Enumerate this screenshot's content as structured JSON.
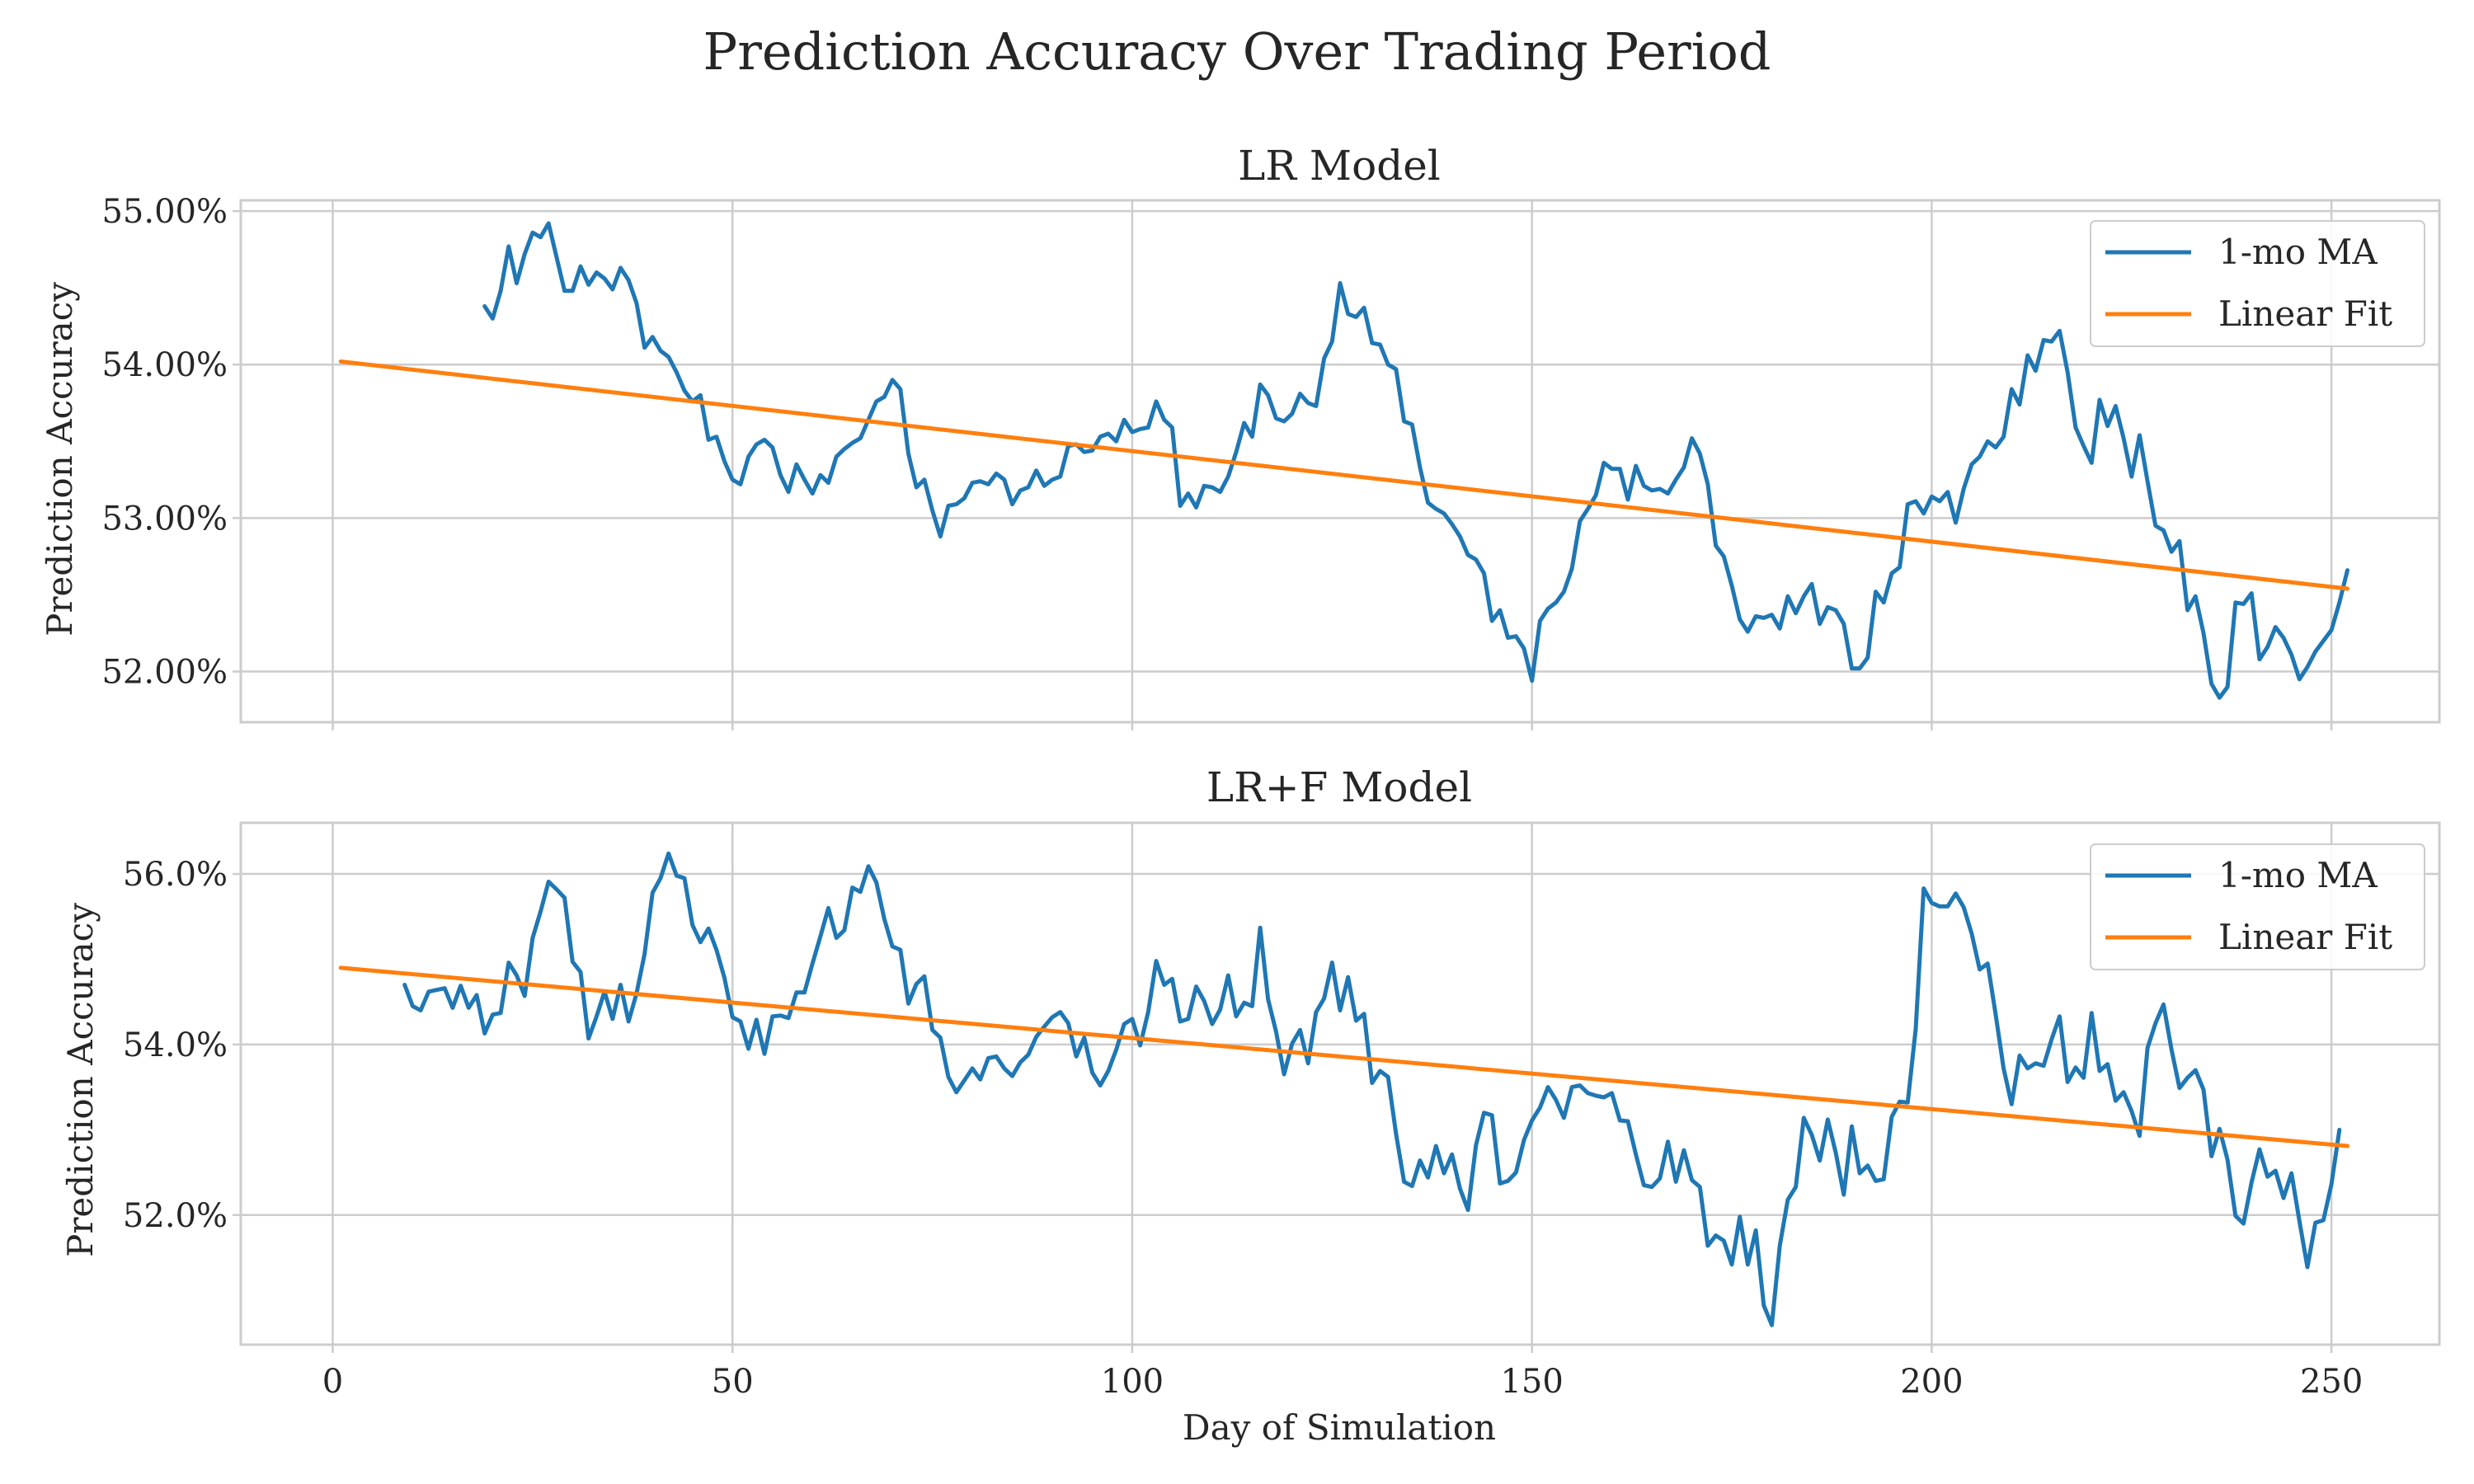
{
  "figure": {
    "title": "Prediction Accuracy Over Trading Period"
  },
  "colors": {
    "ma": "#1f77b4",
    "fit": "#ff7f0e",
    "grid": "#cccccc",
    "frame": "#cccccc",
    "text": "#262626"
  },
  "chart_data": [
    {
      "type": "line",
      "title": "LR Model",
      "xlabel": "",
      "ylabel": "Prediction Accuracy",
      "xlim": [
        -11.5,
        263.5
      ],
      "ylim": [
        51.67,
        55.07
      ],
      "xticks": [
        0,
        50,
        100,
        150,
        200,
        250
      ],
      "yticks": [
        52,
        53,
        54,
        55
      ],
      "ytick_labels": [
        "52.00%",
        "53.00%",
        "54.00%",
        "55.00%"
      ],
      "grid": true,
      "legend": {
        "position": "top-right",
        "entries": [
          "1-mo MA",
          "Linear Fit"
        ]
      },
      "series": [
        {
          "name": "1-mo MA",
          "x_start": 19,
          "y": [
            54.38,
            54.3,
            54.48,
            54.77,
            54.53,
            54.72,
            54.86,
            54.83,
            54.92,
            54.7,
            54.48,
            54.48,
            54.64,
            54.52,
            54.6,
            54.56,
            54.49,
            54.63,
            54.55,
            54.4,
            54.11,
            54.18,
            54.09,
            54.05,
            53.95,
            53.83,
            53.76,
            53.8,
            53.51,
            53.53,
            53.37,
            53.25,
            53.22,
            53.4,
            53.48,
            53.51,
            53.46,
            53.28,
            53.17,
            53.35,
            53.25,
            53.16,
            53.28,
            53.23,
            53.4,
            53.45,
            53.49,
            53.52,
            53.64,
            53.76,
            53.79,
            53.9,
            53.84,
            53.42,
            53.2,
            53.25,
            53.05,
            52.88,
            53.08,
            53.09,
            53.13,
            53.23,
            53.24,
            53.22,
            53.29,
            53.25,
            53.09,
            53.18,
            53.2,
            53.31,
            53.21,
            53.25,
            53.27,
            53.47,
            53.48,
            53.43,
            53.44,
            53.53,
            53.55,
            53.5,
            53.64,
            53.56,
            53.58,
            53.59,
            53.76,
            53.64,
            53.59,
            53.08,
            53.16,
            53.07,
            53.21,
            53.2,
            53.17,
            53.27,
            53.43,
            53.62,
            53.53,
            53.87,
            53.8,
            53.65,
            53.63,
            53.68,
            53.81,
            53.75,
            53.73,
            54.04,
            54.15,
            54.53,
            54.33,
            54.31,
            54.37,
            54.14,
            54.13,
            54.0,
            53.97,
            53.63,
            53.61,
            53.33,
            53.1,
            53.06,
            53.03,
            52.96,
            52.88,
            52.76,
            52.73,
            52.64,
            52.33,
            52.4,
            52.22,
            52.23,
            52.15,
            51.94,
            52.33,
            52.41,
            52.45,
            52.52,
            52.67,
            52.98,
            53.06,
            53.15,
            53.36,
            53.32,
            53.32,
            53.12,
            53.34,
            53.21,
            53.18,
            53.19,
            53.16,
            53.25,
            53.33,
            53.52,
            53.42,
            53.22,
            52.82,
            52.75,
            52.56,
            52.34,
            52.26,
            52.36,
            52.35,
            52.37,
            52.28,
            52.49,
            52.38,
            52.49,
            52.57,
            52.31,
            52.42,
            52.4,
            52.31,
            52.02,
            52.02,
            52.09,
            52.52,
            52.45,
            52.64,
            52.68,
            53.09,
            53.11,
            53.03,
            53.14,
            53.11,
            53.17,
            52.97,
            53.19,
            53.35,
            53.4,
            53.5,
            53.46,
            53.53,
            53.84,
            53.74,
            54.06,
            53.96,
            54.16,
            54.15,
            54.22,
            53.95,
            53.59,
            53.47,
            53.36,
            53.77,
            53.6,
            53.73,
            53.52,
            53.27,
            53.54,
            53.24,
            52.95,
            52.92,
            52.78,
            52.85,
            52.4,
            52.49,
            52.25,
            51.92,
            51.83,
            51.9,
            52.45,
            52.44,
            52.51,
            52.08,
            52.16,
            52.29,
            52.22,
            52.11,
            51.95,
            52.03,
            52.13,
            52.2,
            52.27,
            52.45,
            52.66
          ]
        },
        {
          "name": "Linear Fit",
          "x": [
            1,
            252
          ],
          "y": [
            54.02,
            52.54
          ]
        }
      ]
    },
    {
      "type": "line",
      "title": "LR+F Model",
      "xlabel": "Day of Simulation",
      "ylabel": "Prediction Accuracy",
      "xlim": [
        -11.5,
        263.5
      ],
      "ylim": [
        50.48,
        56.6
      ],
      "xticks": [
        0,
        50,
        100,
        150,
        200,
        250
      ],
      "xtick_labels": [
        "0",
        "50",
        "100",
        "150",
        "200",
        "250"
      ],
      "yticks": [
        52,
        54,
        56
      ],
      "ytick_labels": [
        "52.0%",
        "54.0%",
        "56.0%"
      ],
      "grid": true,
      "legend": {
        "position": "top-right",
        "entries": [
          "1-mo MA",
          "Linear Fit"
        ]
      },
      "series": [
        {
          "name": "1-mo MA",
          "x_start": 9,
          "y": [
            54.7,
            54.45,
            54.4,
            54.62,
            54.64,
            54.66,
            54.43,
            54.69,
            54.43,
            54.58,
            54.13,
            54.35,
            54.37,
            54.96,
            54.81,
            54.57,
            55.25,
            55.56,
            55.91,
            55.82,
            55.72,
            54.97,
            54.85,
            54.07,
            54.33,
            54.62,
            54.3,
            54.7,
            54.27,
            54.6,
            55.06,
            55.78,
            55.95,
            56.24,
            55.98,
            55.95,
            55.4,
            55.2,
            55.36,
            55.11,
            54.78,
            54.32,
            54.27,
            53.95,
            54.29,
            53.89,
            54.33,
            54.34,
            54.31,
            54.61,
            54.61,
            54.95,
            55.27,
            55.6,
            55.25,
            55.34,
            55.84,
            55.79,
            56.09,
            55.9,
            55.47,
            55.15,
            55.11,
            54.48,
            54.71,
            54.8,
            54.17,
            54.08,
            53.62,
            53.44,
            53.58,
            53.72,
            53.59,
            53.84,
            53.86,
            53.72,
            53.63,
            53.79,
            53.88,
            54.09,
            54.21,
            54.32,
            54.38,
            54.25,
            53.86,
            54.08,
            53.67,
            53.52,
            53.69,
            53.94,
            54.24,
            54.3,
            53.99,
            54.38,
            54.98,
            54.7,
            54.77,
            54.27,
            54.3,
            54.68,
            54.51,
            54.24,
            54.41,
            54.81,
            54.33,
            54.49,
            54.45,
            55.37,
            54.53,
            54.15,
            53.65,
            54.01,
            54.17,
            53.78,
            54.38,
            54.54,
            54.96,
            54.4,
            54.79,
            54.28,
            54.36,
            53.55,
            53.69,
            53.62,
            52.95,
            52.39,
            52.34,
            52.64,
            52.44,
            52.81,
            52.49,
            52.71,
            52.31,
            52.06,
            52.82,
            53.2,
            53.17,
            52.37,
            52.4,
            52.5,
            52.88,
            53.11,
            53.26,
            53.5,
            53.35,
            53.14,
            53.5,
            53.52,
            53.43,
            53.4,
            53.38,
            53.43,
            53.11,
            53.1,
            52.71,
            52.35,
            52.33,
            52.43,
            52.86,
            52.39,
            52.76,
            52.41,
            52.33,
            51.64,
            51.76,
            51.7,
            51.42,
            51.98,
            51.42,
            51.82,
            50.94,
            50.71,
            51.64,
            52.18,
            52.33,
            53.14,
            52.94,
            52.64,
            53.12,
            52.73,
            52.24,
            53.04,
            52.49,
            52.58,
            52.4,
            52.42,
            53.15,
            53.33,
            53.32,
            54.18,
            55.83,
            55.66,
            55.62,
            55.62,
            55.77,
            55.61,
            55.3,
            54.88,
            54.95,
            54.35,
            53.72,
            53.3,
            53.87,
            53.72,
            53.78,
            53.75,
            54.06,
            54.33,
            53.56,
            53.73,
            53.61,
            54.37,
            53.69,
            53.77,
            53.34,
            53.44,
            53.22,
            52.93,
            53.96,
            54.25,
            54.47,
            53.94,
            53.49,
            53.61,
            53.7,
            53.47,
            52.69,
            53.01,
            52.65,
            51.99,
            51.9,
            52.38,
            52.77,
            52.45,
            52.52,
            52.2,
            52.49,
            51.93,
            51.39,
            51.91,
            51.94,
            52.36,
            53.0
          ]
        },
        {
          "name": "Linear Fit",
          "x": [
            1,
            252
          ],
          "y": [
            54.9,
            52.81
          ]
        }
      ]
    }
  ]
}
